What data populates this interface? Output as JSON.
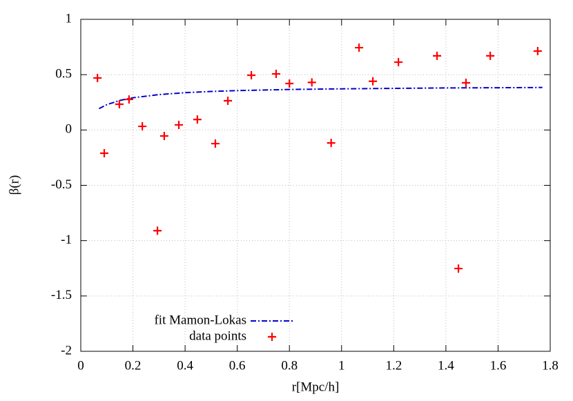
{
  "chart_data": {
    "type": "scatter",
    "xlabel": "r[Mpc/h]",
    "ylabel": "β(r)",
    "xlim": [
      0,
      1.8
    ],
    "xticks": [
      0,
      0.2,
      0.4,
      0.6,
      0.8,
      1,
      1.2,
      1.4,
      1.6,
      1.8
    ],
    "ylim": [
      -2,
      1
    ],
    "yticks": [
      -2,
      -1.5,
      -1,
      -0.5,
      0,
      0.5,
      1
    ],
    "grid": true,
    "legend": "lower left",
    "series": [
      {
        "name": "fit Mamon-Lokas",
        "color": "#0000cc",
        "style": "dashdot",
        "x": [
          0.07,
          0.1,
          0.15,
          0.2,
          0.3,
          0.4,
          0.5,
          0.6,
          0.8,
          1.0,
          1.2,
          1.4,
          1.6,
          1.77
        ],
        "values": [
          0.193,
          0.229,
          0.267,
          0.291,
          0.32,
          0.337,
          0.348,
          0.356,
          0.366,
          0.372,
          0.376,
          0.38,
          0.382,
          0.384
        ]
      },
      {
        "name": "data points",
        "color": "#ff0000",
        "style": "plus",
        "x": [
          0.064,
          0.09,
          0.148,
          0.185,
          0.236,
          0.294,
          0.32,
          0.376,
          0.447,
          0.516,
          0.564,
          0.654,
          0.749,
          0.8,
          0.886,
          0.96,
          1.067,
          1.12,
          1.218,
          1.366,
          1.448,
          1.477,
          1.57,
          1.752
        ],
        "values": [
          0.47,
          -0.21,
          0.233,
          0.276,
          0.033,
          -0.91,
          -0.054,
          0.046,
          0.095,
          -0.123,
          0.264,
          0.495,
          0.507,
          0.42,
          0.43,
          -0.117,
          0.744,
          0.44,
          0.613,
          0.67,
          -1.252,
          0.426,
          0.67,
          0.713
        ]
      }
    ]
  }
}
